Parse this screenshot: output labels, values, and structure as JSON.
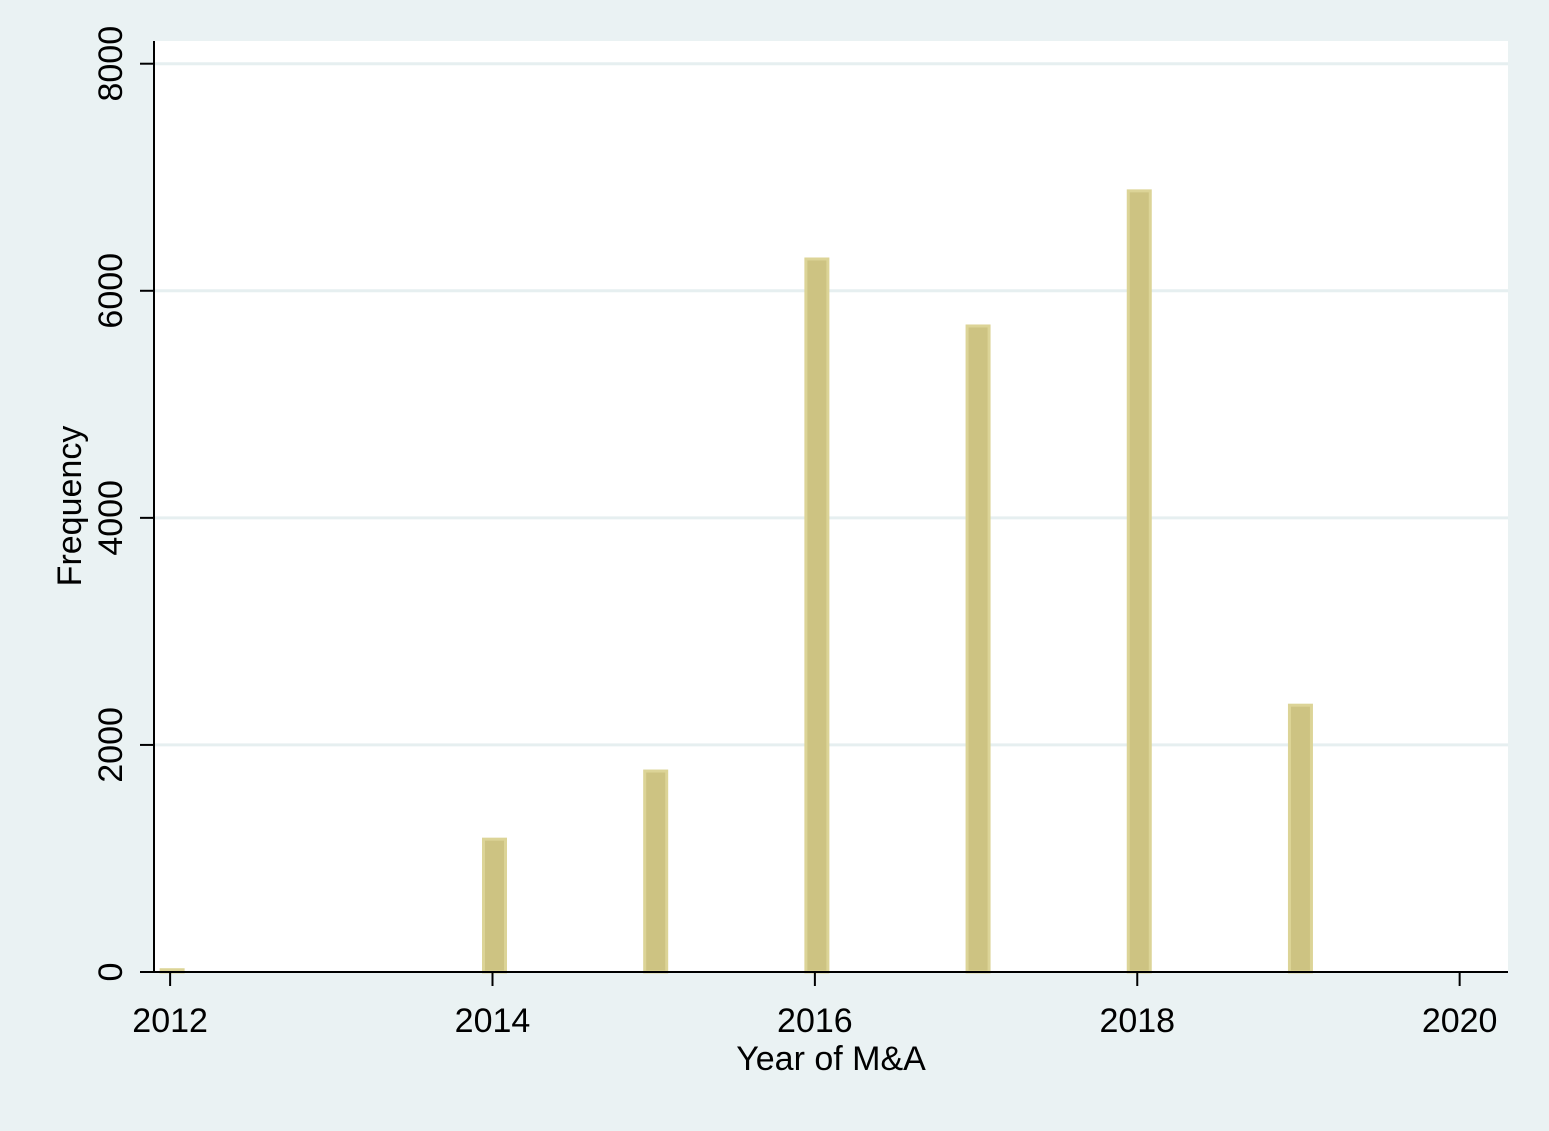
{
  "chart_data": {
    "type": "bar",
    "title": "",
    "xlabel": "Year of M&A",
    "ylabel": "Frequency",
    "x": [
      2012,
      2014,
      2015,
      2016,
      2017,
      2018,
      2019
    ],
    "values": [
      20,
      1170,
      1770,
      6280,
      5690,
      6880,
      2350
    ],
    "xlim": [
      2011.9,
      2020.3
    ],
    "ylim": [
      0,
      8200
    ],
    "xticks": [
      2012,
      2014,
      2016,
      2018,
      2020
    ],
    "xtick_labels": [
      "2012",
      "2014",
      "2016",
      "2018",
      "2020"
    ],
    "yticks": [
      0,
      2000,
      4000,
      6000,
      8000
    ],
    "ytick_labels": [
      "0",
      "2000",
      "4000",
      "6000",
      "8000"
    ],
    "grid": "horizontal",
    "legend": "none",
    "colors": {
      "background": "#eaf2f3",
      "plot_background": "#ffffff",
      "bar_fill": "#cdc382",
      "bar_stroke": "#dcd497",
      "gridline": "#e6eff0",
      "axis": "#000000"
    }
  }
}
